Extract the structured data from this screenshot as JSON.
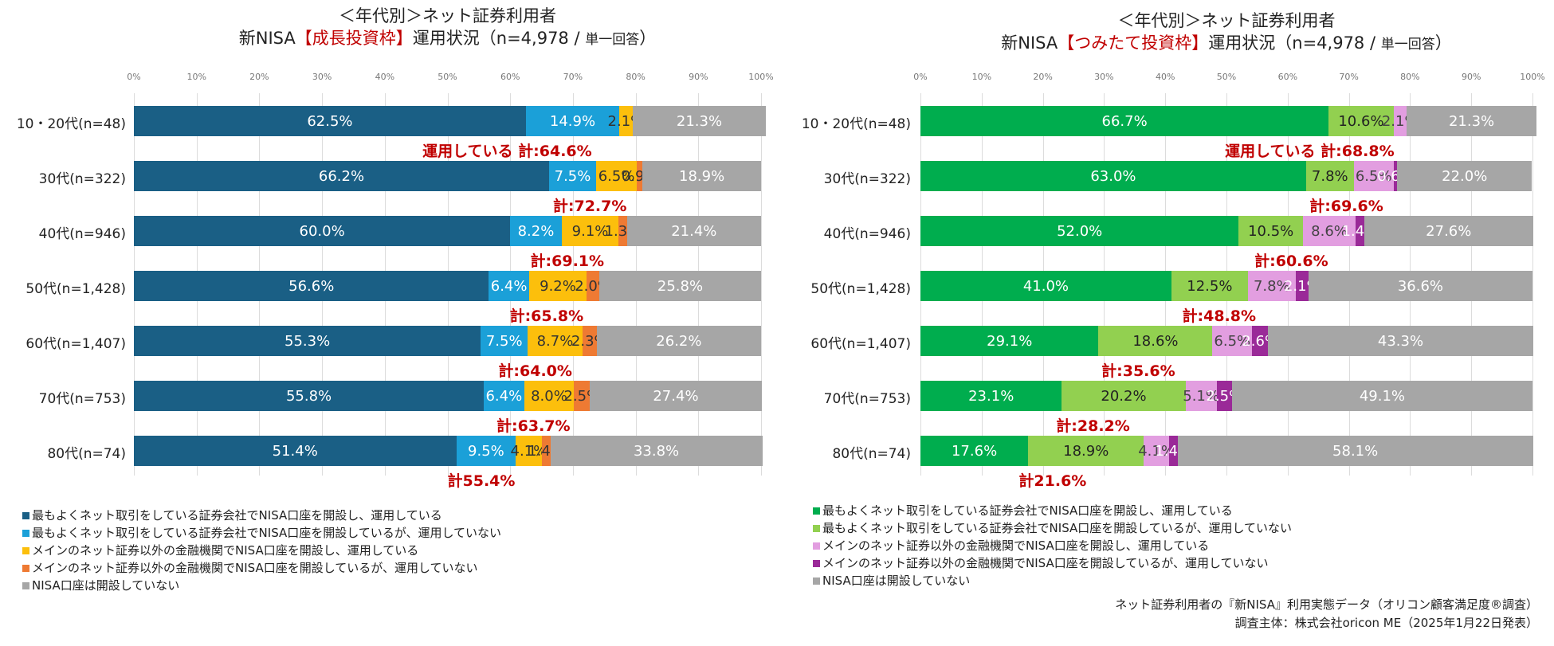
{
  "chart_data": [
    {
      "type": "bar",
      "orientation": "horizontal-stacked-100",
      "title_line1": "＜年代別＞ネット証券利用者",
      "title_prefix": "新NISA",
      "title_highlight": "【成長投資枠】",
      "title_suffix": "運用状況（n=4,978 / ",
      "title_small": "単一回答",
      "title_end": "）",
      "xlim": [
        0,
        100
      ],
      "ticks": [
        "0%",
        "10%",
        "20%",
        "30%",
        "40%",
        "50%",
        "60%",
        "70%",
        "80%",
        "90%",
        "100%"
      ],
      "categories": [
        "10・20代(n=48)",
        "30代(n=322)",
        "40代(n=946)",
        "50代(n=1,428)",
        "60代(n=1,407)",
        "70代(n=753)",
        "80代(n=74)"
      ],
      "series": [
        {
          "name": "最もよくネット取引をしている証券会社でNISA口座を開設し、運用している",
          "color": "#1a5f85",
          "label_color": "#ffffff",
          "values": [
            62.5,
            66.2,
            60.0,
            56.6,
            55.3,
            55.8,
            51.4
          ]
        },
        {
          "name": "最もよくネット取引をしている証券会社でNISA口座を開設しているが、運用していない",
          "color": "#1ba0d8",
          "label_color": "#ffffff",
          "values": [
            14.9,
            7.5,
            8.2,
            6.4,
            7.5,
            6.4,
            9.5
          ]
        },
        {
          "name": "メインのネット証券以外の金融機関でNISA口座を開設し、運用している",
          "color": "#fcbf0c",
          "label_color": "#333333",
          "values": [
            2.1,
            6.5,
            9.1,
            9.2,
            8.7,
            8.0,
            4.1
          ]
        },
        {
          "name": "メインのネット証券以外の金融機関でNISA口座を開設しているが、運用していない",
          "color": "#ee7a33",
          "label_color": "#333333",
          "values": [
            0,
            0.9,
            1.3,
            2.0,
            2.3,
            2.5,
            1.4
          ]
        },
        {
          "name": "NISA口座は開設していない",
          "color": "#a6a6a6",
          "label_color": "#ffffff",
          "values": [
            21.3,
            18.9,
            21.4,
            25.8,
            26.2,
            27.4,
            33.8
          ]
        }
      ],
      "segment_labels": [
        [
          "62.5%",
          "14.9%",
          "2.1%",
          "",
          "21.3%"
        ],
        [
          "66.2%",
          "7.5%",
          "6.5%",
          "0.9%",
          "18.9%"
        ],
        [
          "60.0%",
          "8.2%",
          "9.1%",
          "1.3%",
          "21.4%"
        ],
        [
          "56.6%",
          "6.4%",
          "9.2%",
          "2.0%",
          "25.8%"
        ],
        [
          "55.3%",
          "7.5%",
          "8.7%",
          "2.3%",
          "26.2%"
        ],
        [
          "55.8%",
          "6.4%",
          "8.0%",
          "2.5%",
          "27.4%"
        ],
        [
          "51.4%",
          "9.5%",
          "4.1%",
          "1.4%",
          "33.8%"
        ]
      ],
      "totals": [
        "運用している 計:64.6%",
        "計:72.7%",
        "計:69.1%",
        "計:65.8%",
        "計:64.0%",
        "計:63.7%",
        "計55.4%"
      ],
      "total_values": [
        64.6,
        72.7,
        69.1,
        65.8,
        64.0,
        63.7,
        55.4
      ],
      "legend_position": "bottom-left"
    },
    {
      "type": "bar",
      "orientation": "horizontal-stacked-100",
      "title_line1": "＜年代別＞ネット証券利用者",
      "title_prefix": "新NISA",
      "title_highlight": "【つみたて投資枠】",
      "title_suffix": "運用状況（n=4,978 / ",
      "title_small": "単一回答",
      "title_end": "）",
      "xlim": [
        0,
        100
      ],
      "ticks": [
        "0%",
        "10%",
        "20%",
        "30%",
        "40%",
        "50%",
        "60%",
        "70%",
        "80%",
        "90%",
        "100%"
      ],
      "categories": [
        "10・20代(n=48)",
        "30代(n=322)",
        "40代(n=946)",
        "50代(n=1,428)",
        "60代(n=1,407)",
        "70代(n=753)",
        "80代(n=74)"
      ],
      "series": [
        {
          "name": "最もよくネット取引をしている証券会社でNISA口座を開設し、運用している",
          "color": "#00ad4e",
          "label_color": "#ffffff",
          "values": [
            66.7,
            63.0,
            52.0,
            41.0,
            29.1,
            23.1,
            17.6
          ]
        },
        {
          "name": "最もよくネット取引をしている証券会社でNISA口座を開設しているが、運用していない",
          "color": "#92d050",
          "label_color": "#222222",
          "values": [
            10.6,
            7.8,
            10.5,
            12.5,
            18.6,
            20.2,
            18.9
          ]
        },
        {
          "name": "メインのネット証券以外の金融機関でNISA口座を開設し、運用している",
          "color": "#e29ee0",
          "label_color": "#444444",
          "values": [
            2.1,
            6.5,
            8.6,
            7.8,
            6.5,
            5.1,
            4.1
          ]
        },
        {
          "name": "メインのネット証券以外の金融機関でNISA口座を開設しているが、運用していない",
          "color": "#9a2a98",
          "label_color": "#ffffff",
          "values": [
            0,
            0.6,
            1.4,
            2.1,
            2.6,
            2.5,
            1.4
          ]
        },
        {
          "name": "NISA口座は開設していない",
          "color": "#a6a6a6",
          "label_color": "#ffffff",
          "values": [
            21.3,
            22.0,
            27.6,
            36.6,
            43.3,
            49.1,
            58.1
          ]
        }
      ],
      "segment_labels": [
        [
          "66.7%",
          "10.6%",
          "2.1%",
          "",
          "21.3%"
        ],
        [
          "63.0%",
          "7.8%",
          "6.5%",
          "0.6%",
          "22.0%"
        ],
        [
          "52.0%",
          "10.5%",
          "8.6%",
          "1.4%",
          "27.6%"
        ],
        [
          "41.0%",
          "12.5%",
          "7.8%",
          "2.1%",
          "36.6%"
        ],
        [
          "29.1%",
          "18.6%",
          "6.5%",
          "2.6%",
          "43.3%"
        ],
        [
          "23.1%",
          "20.2%",
          "5.1%",
          "2.5%",
          "49.1%"
        ],
        [
          "17.6%",
          "18.9%",
          "4.1%",
          "1.4%",
          "58.1%"
        ]
      ],
      "totals": [
        "運用している 計:68.8%",
        "計:69.6%",
        "計:60.6%",
        "計:48.8%",
        "計:35.6%",
        "計:28.2%",
        "計21.6%"
      ],
      "total_values": [
        68.8,
        69.6,
        60.6,
        48.8,
        35.6,
        28.2,
        21.6
      ],
      "legend_position": "bottom-left"
    }
  ],
  "source": {
    "line1": "ネット証券利用者の『新NISA』利用実態データ（オリコン顧客満足度®調査）",
    "line2": "調査主体：株式会社oricon ME（2025年1月22日発表）"
  }
}
